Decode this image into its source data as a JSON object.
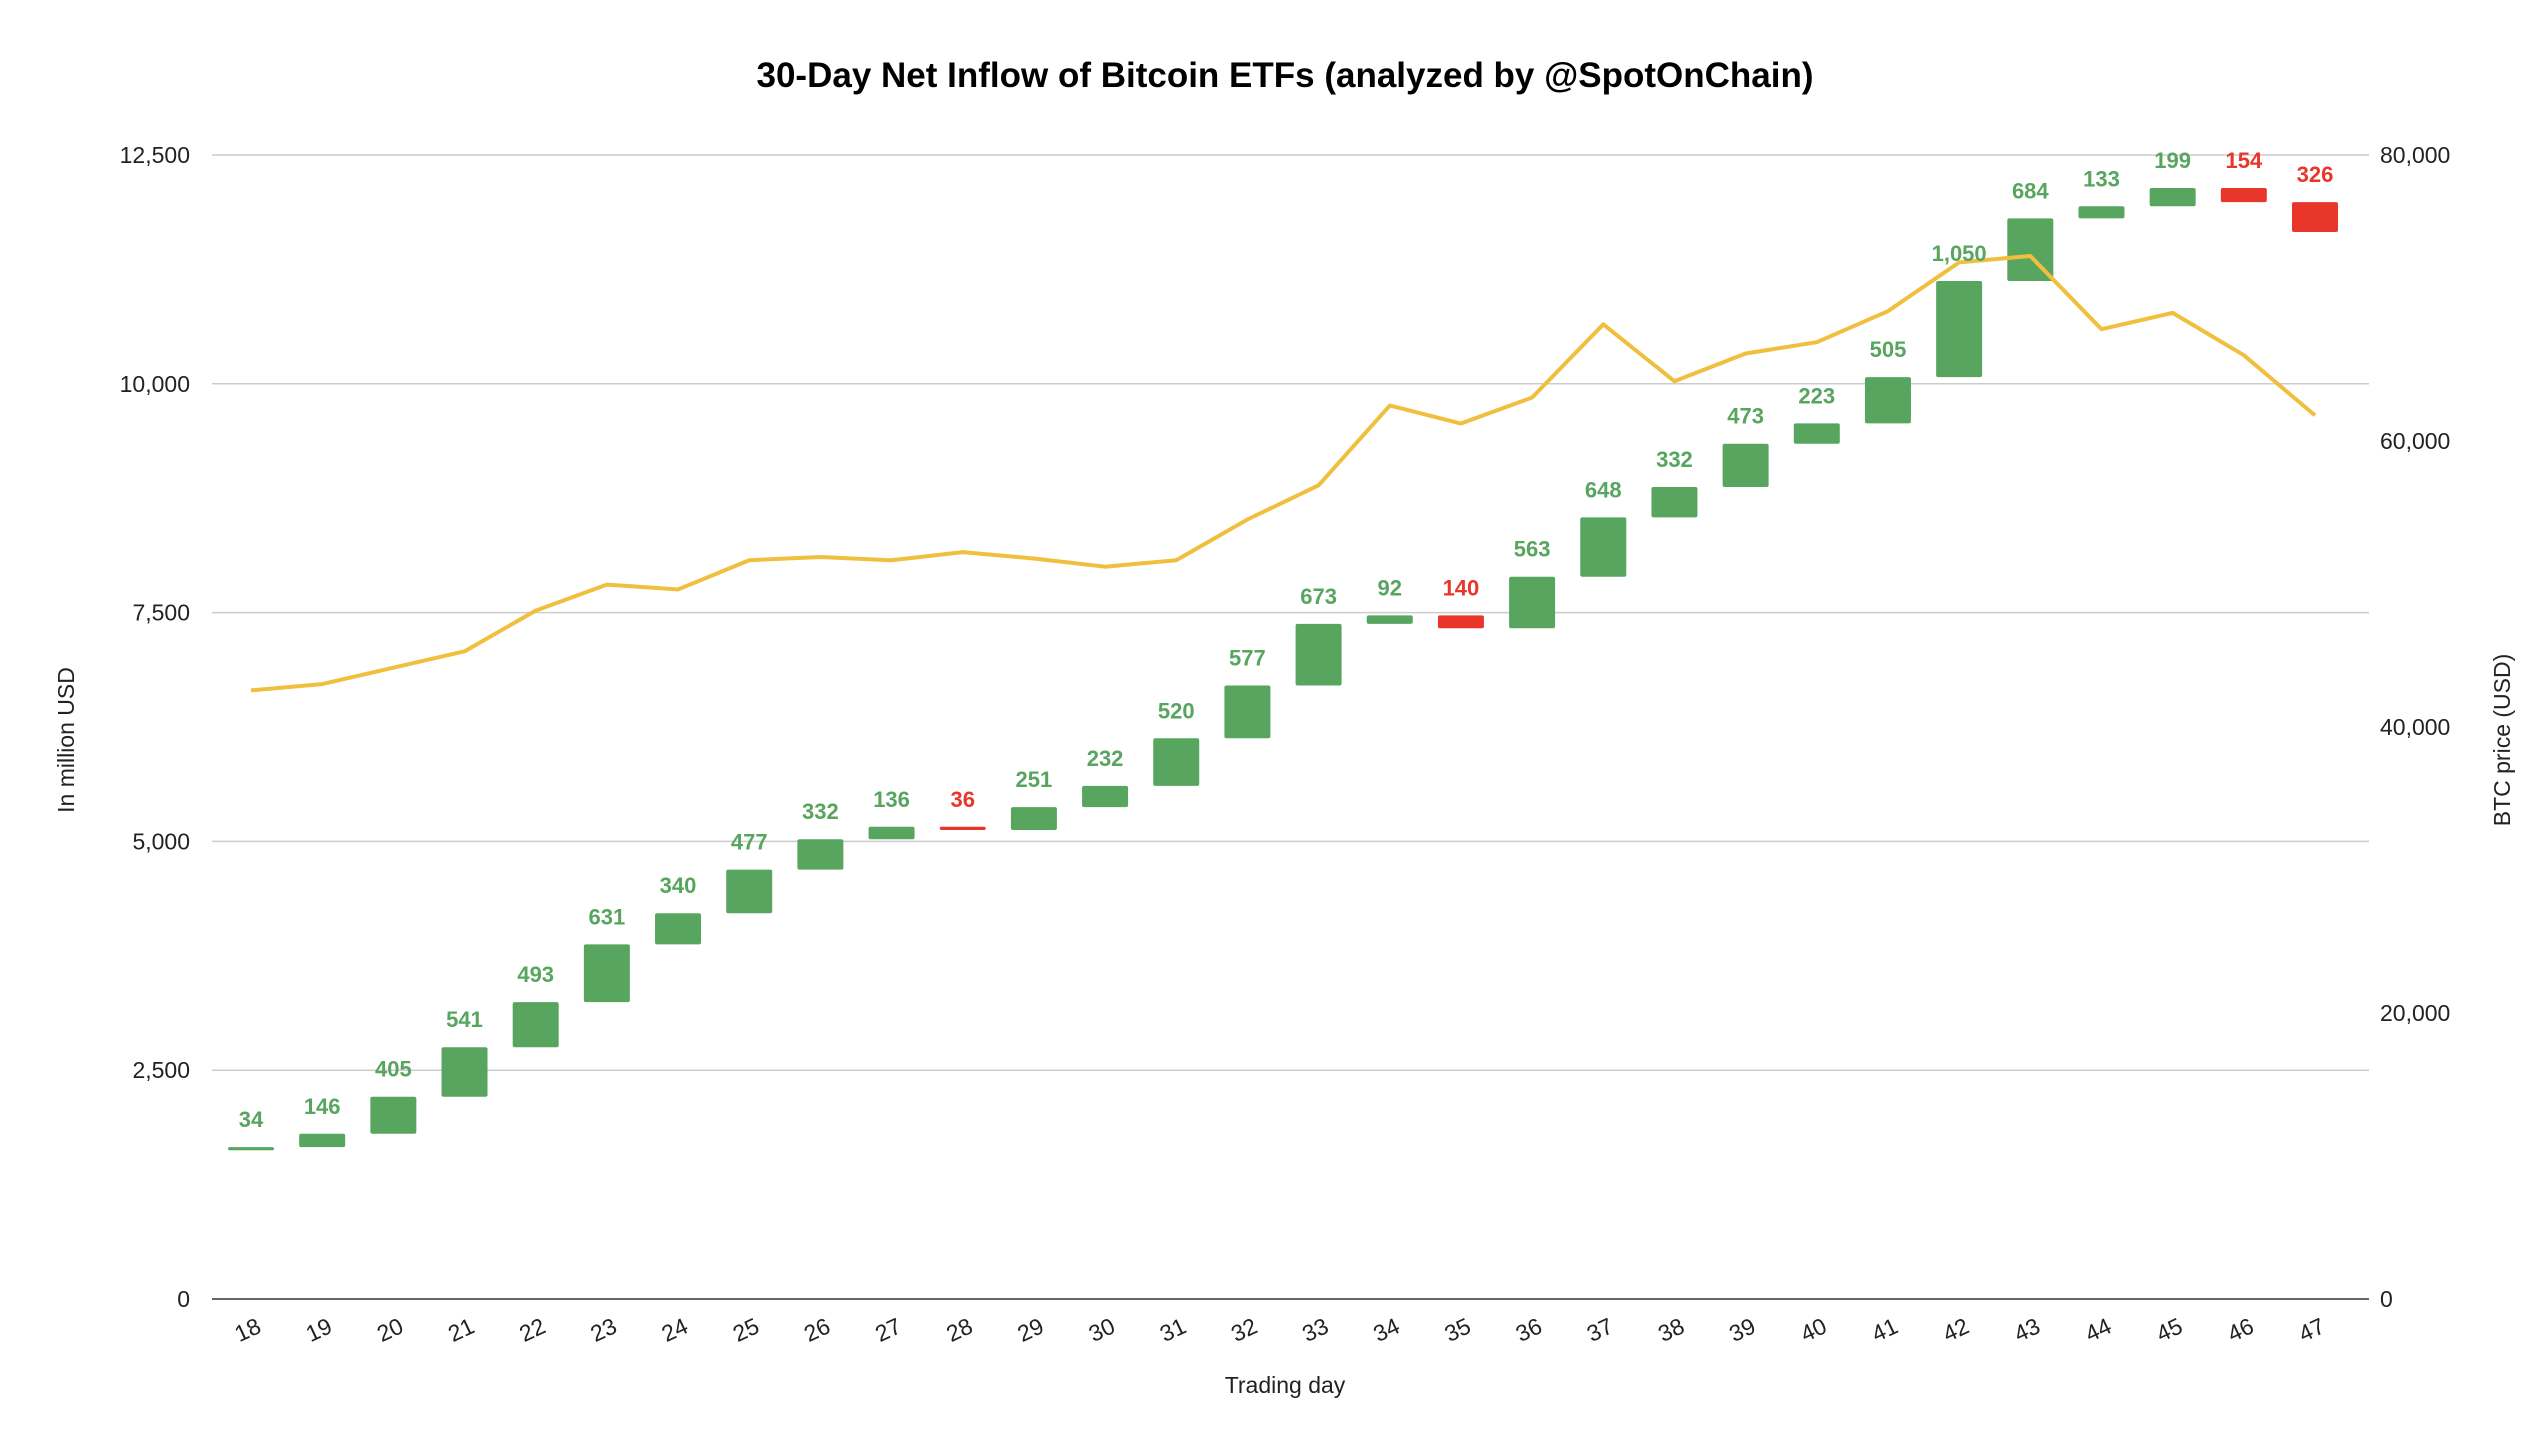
{
  "chart_data": {
    "type": "waterfall-with-line",
    "title": "30-Day Net Inflow of Bitcoin ETFs (analyzed by @SpotOnChain)",
    "xlabel": "Trading day",
    "ylabel": "In million USD",
    "y2label": "BTC price (USD)",
    "categories": [
      "18",
      "19",
      "20",
      "21",
      "22",
      "23",
      "24",
      "25",
      "26",
      "27",
      "28",
      "29",
      "30",
      "31",
      "32",
      "33",
      "34",
      "35",
      "36",
      "37",
      "38",
      "39",
      "40",
      "41",
      "42",
      "43",
      "44",
      "45",
      "46",
      "47"
    ],
    "starting_cumulative": 1625,
    "net_inflow": [
      34,
      146,
      405,
      541,
      493,
      631,
      340,
      477,
      332,
      136,
      -36,
      251,
      232,
      520,
      577,
      673,
      92,
      -140,
      563,
      648,
      332,
      473,
      223,
      505,
      1050,
      684,
      133,
      199,
      -154,
      -326
    ],
    "data_labels": [
      "34",
      "146",
      "405",
      "541",
      "493",
      "631",
      "340",
      "477",
      "332",
      "136",
      "36",
      "251",
      "232",
      "520",
      "577",
      "673",
      "92",
      "140",
      "563",
      "648",
      "332",
      "473",
      "223",
      "505",
      "1,050",
      "684",
      "133",
      "199",
      "154",
      "326"
    ],
    "btc_price": [
      42560,
      43000,
      44150,
      45290,
      48140,
      49960,
      49620,
      51660,
      51890,
      51660,
      52230,
      51780,
      51210,
      51660,
      54510,
      56900,
      62480,
      61220,
      63040,
      68160,
      64180,
      66120,
      66910,
      69080,
      72490,
      72940,
      67820,
      68960,
      66000,
      61790
    ],
    "ylim": [
      0,
      12500
    ],
    "y2lim": [
      0,
      80000
    ],
    "yticks": [
      "0",
      "2,500",
      "5,000",
      "7,500",
      "10,000",
      "12,500"
    ],
    "y2ticks": [
      "0",
      "20,000",
      "40,000",
      "60,000",
      "80,000"
    ],
    "grid": true,
    "legend": "none",
    "colors": {
      "increase": "#57a55f",
      "decrease": "#e8372a",
      "line": "#f0bf3e",
      "grid": "#cccccc"
    }
  }
}
